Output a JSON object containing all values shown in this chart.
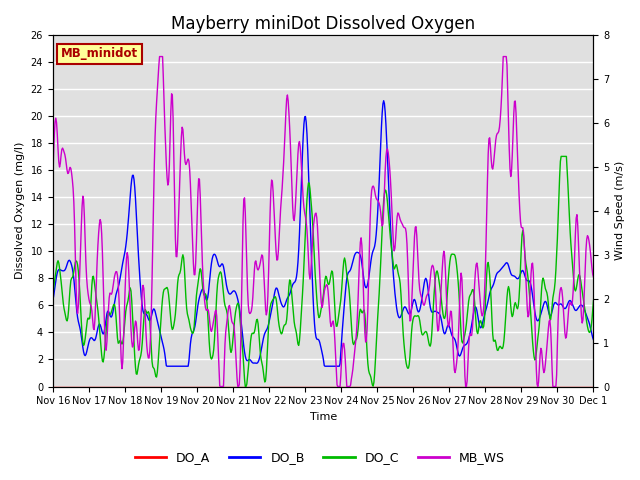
{
  "title": "Mayberry miniDot Dissolved Oxygen",
  "ylabel_left": "Dissolved Oxygen (mg/l)",
  "ylabel_right": "Wind Speed (m/s)",
  "xlabel": "Time",
  "ylim_left": [
    0,
    26
  ],
  "ylim_right": [
    0.0,
    8.0
  ],
  "yticks_left": [
    0,
    2,
    4,
    6,
    8,
    10,
    12,
    14,
    16,
    18,
    20,
    22,
    24,
    26
  ],
  "yticks_right": [
    0.0,
    1.0,
    2.0,
    3.0,
    4.0,
    5.0,
    6.0,
    7.0,
    8.0
  ],
  "xtick_labels": [
    "Nov 16",
    "Nov 17",
    "Nov 18",
    "Nov 19",
    "Nov 20",
    "Nov 21",
    "Nov 22",
    "Nov 23",
    "Nov 24",
    "Nov 25",
    "Nov 26",
    "Nov 27",
    "Nov 28",
    "Nov 29",
    "Nov 30",
    "Dec 1"
  ],
  "color_DO_A": "#ff0000",
  "color_DO_B": "#0000ff",
  "color_DO_C": "#00bb00",
  "color_MB_WS": "#cc00cc",
  "label_DO_A": "DO_A",
  "label_DO_B": "DO_B",
  "label_DO_C": "DO_C",
  "label_MB_WS": "MB_WS",
  "annotation_text": "MB_minidot",
  "annotation_box_color": "#ffff99",
  "annotation_text_color": "#aa0000",
  "plot_bg_color": "#e0e0e0",
  "grid_color": "#ffffff",
  "linewidth": 1.0,
  "title_fontsize": 12,
  "axis_fontsize": 8,
  "tick_fontsize": 7,
  "legend_fontsize": 9
}
